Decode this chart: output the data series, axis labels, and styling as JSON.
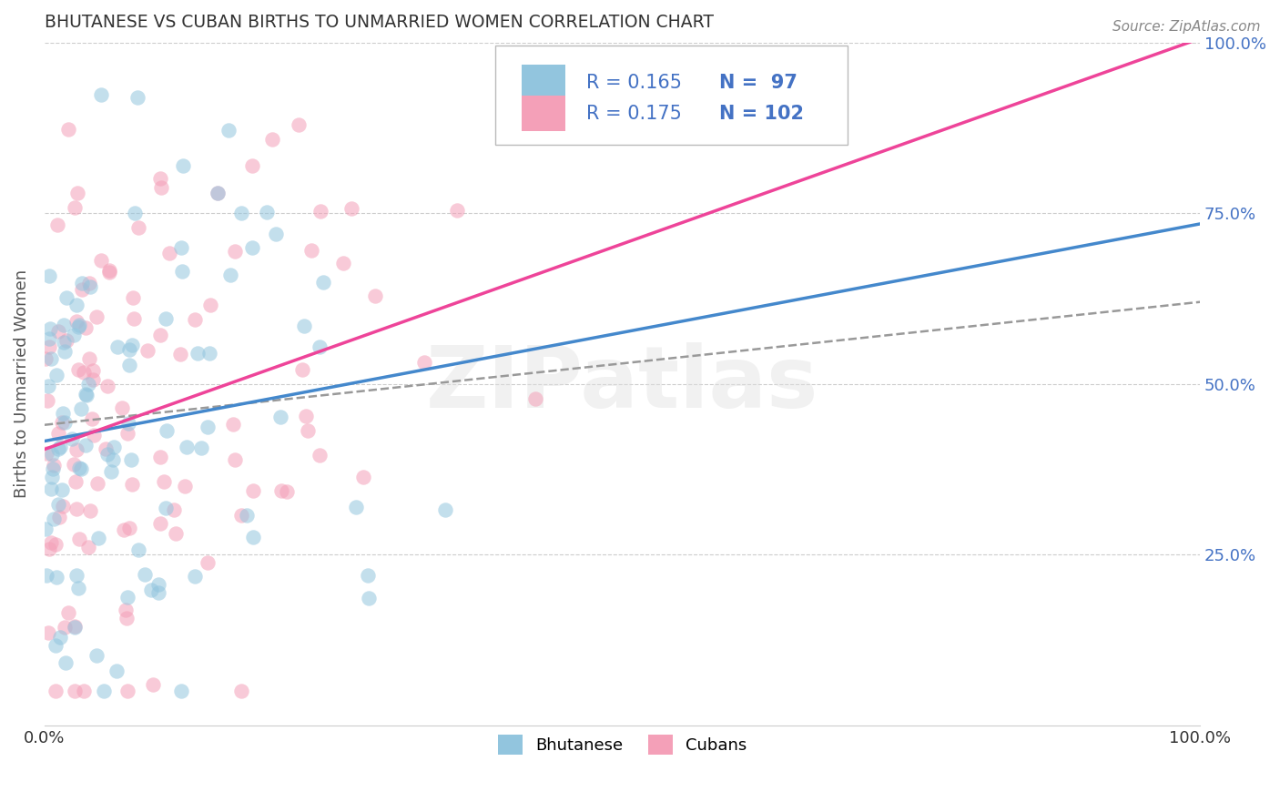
{
  "title": "BHUTANESE VS CUBAN BIRTHS TO UNMARRIED WOMEN CORRELATION CHART",
  "source": "Source: ZipAtlas.com",
  "ylabel": "Births to Unmarried Women",
  "bhutanese_color": "#92C5DE",
  "cuban_color": "#F4A0B8",
  "bhutanese_line_color": "#4488CC",
  "cuban_line_color": "#EE4499",
  "dash_line_color": "#999999",
  "text_color": "#4472C4",
  "title_color": "#333333",
  "watermark_text": "ZIPatlas",
  "legend_r1": "R = 0.165",
  "legend_n1": "N =  97",
  "legend_r2": "R = 0.175",
  "legend_n2": "N = 102",
  "marker_size": 140,
  "marker_alpha": 0.55
}
